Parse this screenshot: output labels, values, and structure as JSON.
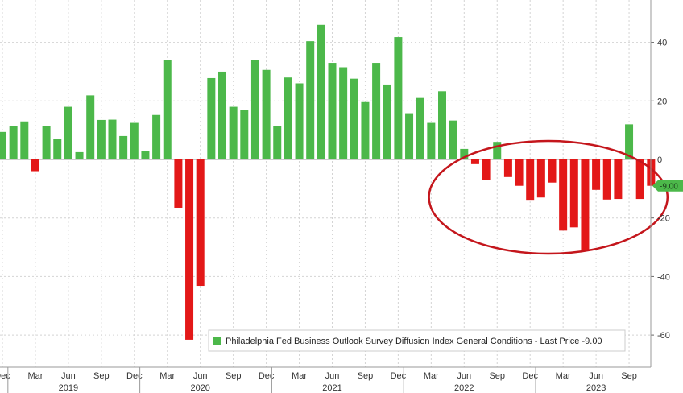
{
  "chart_data": {
    "type": "bar",
    "x_start": "2018-12",
    "frequency": "monthly",
    "values": [
      9.4,
      11.4,
      13.0,
      -4.0,
      11.5,
      7.0,
      18.0,
      2.5,
      21.9,
      13.5,
      13.6,
      8.0,
      12.5,
      3.0,
      15.2,
      33.9,
      -16.5,
      -61.6,
      -43.2,
      27.8,
      30.0,
      18.0,
      17.0,
      34.0,
      30.6,
      11.5,
      28.0,
      26.0,
      40.4,
      46.0,
      33.0,
      31.5,
      27.6,
      19.6,
      33.0,
      25.6,
      41.8,
      15.8,
      21.0,
      12.5,
      23.3,
      13.3,
      3.6,
      -1.6,
      -7.0,
      6.0,
      -6.0,
      -9.0,
      -13.8,
      -13.0,
      -7.9,
      -24.3,
      -23.2,
      -31.3,
      -10.4,
      -13.7,
      -13.5,
      12.0,
      -13.5,
      -9.0
    ],
    "colors": {
      "positive": "#4cb84a",
      "negative": "#e31818"
    },
    "ylim": [
      -70,
      50
    ],
    "y_ticks": [
      40,
      20,
      0,
      -20,
      -40,
      -60
    ],
    "x_tick_labels": [
      {
        "label": "Dec",
        "date": "2018-12"
      },
      {
        "label": "Mar",
        "date": "2019-03"
      },
      {
        "label": "Jun",
        "date": "2019-06"
      },
      {
        "label": "Sep",
        "date": "2019-09"
      },
      {
        "label": "Dec",
        "date": "2019-12"
      },
      {
        "label": "Mar",
        "date": "2020-03"
      },
      {
        "label": "Jun",
        "date": "2020-06"
      },
      {
        "label": "Sep",
        "date": "2020-09"
      },
      {
        "label": "Dec",
        "date": "2020-12"
      },
      {
        "label": "Mar",
        "date": "2021-03"
      },
      {
        "label": "Jun",
        "date": "2021-06"
      },
      {
        "label": "Sep",
        "date": "2021-09"
      },
      {
        "label": "Dec",
        "date": "2021-12"
      },
      {
        "label": "Mar",
        "date": "2022-03"
      },
      {
        "label": "Jun",
        "date": "2022-06"
      },
      {
        "label": "Sep",
        "date": "2022-09"
      },
      {
        "label": "Dec",
        "date": "2022-12"
      },
      {
        "label": "Mar",
        "date": "2023-03"
      },
      {
        "label": "Jun",
        "date": "2023-06"
      },
      {
        "label": "Sep",
        "date": "2023-09"
      }
    ],
    "year_labels": [
      {
        "label": "2019",
        "date": "2019-06"
      },
      {
        "label": "2020",
        "date": "2020-06"
      },
      {
        "label": "2021",
        "date": "2021-06"
      },
      {
        "label": "2022",
        "date": "2022-06"
      },
      {
        "label": "2023",
        "date": "2023-06"
      }
    ],
    "legend": {
      "text": "Philadelphia Fed Business Outlook Survey Diffusion Index General Conditions - Last Price -9.00",
      "color": "#4cb84a",
      "placement": "bottom-right"
    },
    "last_value_label": {
      "text": "-9.00",
      "color": "#4cb84a"
    },
    "annotation": {
      "shape": "ellipse",
      "color": "#c4161c",
      "from": "2022-05",
      "to": "2023-10"
    },
    "grid": true,
    "y_axis_side": "right"
  }
}
